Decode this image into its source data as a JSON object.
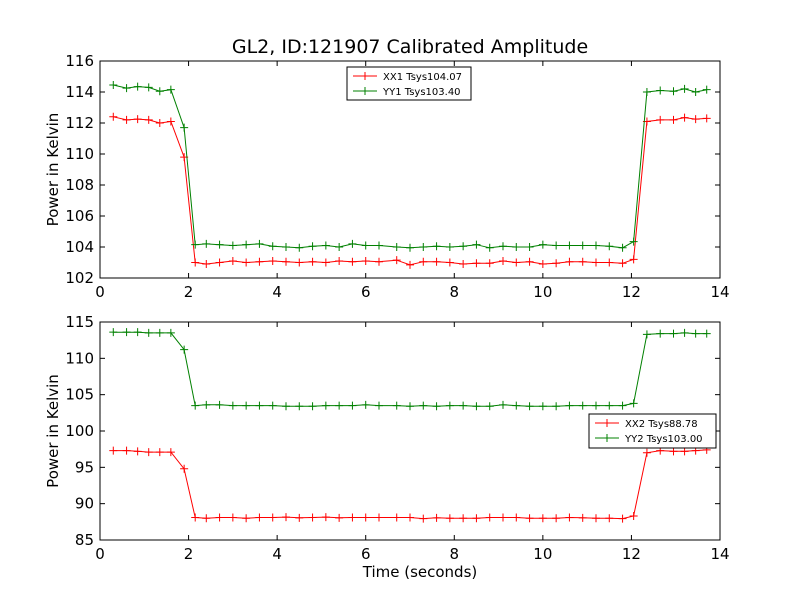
{
  "figure": {
    "title": "GL2, ID:121907 Calibrated Amplitude"
  },
  "chart_data": [
    {
      "type": "line",
      "title": "GL2, ID:121907 Calibrated Amplitude",
      "xlabel": "",
      "ylabel": "Power in Kelvin",
      "xlim": [
        0,
        14
      ],
      "ylim": [
        102,
        116
      ],
      "xticks": [
        "0",
        "2",
        "4",
        "6",
        "8",
        "10",
        "12",
        "14"
      ],
      "yticks": [
        "102",
        "104",
        "106",
        "108",
        "110",
        "112",
        "114",
        "116"
      ],
      "grid": false,
      "legend_position": "upper-center",
      "x": [
        0.3,
        0.6,
        0.85,
        1.1,
        1.35,
        1.6,
        1.9,
        2.15,
        2.4,
        2.7,
        3.0,
        3.3,
        3.6,
        3.9,
        4.2,
        4.5,
        4.8,
        5.1,
        5.4,
        5.7,
        6.0,
        6.3,
        6.7,
        7.0,
        7.3,
        7.6,
        7.9,
        8.2,
        8.5,
        8.8,
        9.1,
        9.4,
        9.7,
        10.0,
        10.3,
        10.6,
        10.9,
        11.2,
        11.5,
        11.8,
        12.05,
        12.35,
        12.65,
        12.95,
        13.2,
        13.45,
        13.7
      ],
      "series": [
        {
          "name": "XX1 Tsys104.07",
          "color": "#ff0000",
          "values": [
            112.4,
            112.2,
            112.25,
            112.2,
            112.0,
            112.1,
            109.8,
            103.0,
            102.9,
            103.0,
            103.1,
            103.0,
            103.05,
            103.1,
            103.05,
            103.0,
            103.05,
            103.0,
            103.1,
            103.05,
            103.1,
            103.05,
            103.15,
            102.85,
            103.05,
            103.05,
            103.0,
            102.9,
            102.95,
            102.95,
            103.1,
            103.0,
            103.05,
            102.9,
            102.95,
            103.05,
            103.05,
            103.0,
            103.0,
            102.95,
            103.2,
            112.1,
            112.2,
            112.2,
            112.35,
            112.25,
            112.3
          ]
        },
        {
          "name": "YY1 Tsys103.40",
          "color": "#008000",
          "values": [
            114.45,
            114.25,
            114.35,
            114.3,
            114.05,
            114.15,
            111.7,
            104.15,
            104.2,
            104.15,
            104.1,
            104.15,
            104.2,
            104.05,
            104.0,
            103.95,
            104.05,
            104.1,
            104.0,
            104.2,
            104.1,
            104.1,
            104.0,
            103.95,
            104.0,
            104.05,
            104.0,
            104.05,
            104.15,
            103.95,
            104.05,
            104.0,
            104.0,
            104.15,
            104.1,
            104.1,
            104.1,
            104.1,
            104.05,
            103.95,
            104.35,
            114.0,
            114.1,
            114.05,
            114.2,
            114.0,
            114.15
          ]
        }
      ]
    },
    {
      "type": "line",
      "title": "",
      "xlabel": "Time (seconds)",
      "ylabel": "Power in Kelvin",
      "xlim": [
        0,
        14
      ],
      "ylim": [
        85,
        115
      ],
      "xticks": [
        "0",
        "2",
        "4",
        "6",
        "8",
        "10",
        "12",
        "14"
      ],
      "yticks": [
        "85",
        "90",
        "95",
        "100",
        "105",
        "110",
        "115"
      ],
      "grid": false,
      "legend_position": "center-right",
      "x": [
        0.3,
        0.6,
        0.85,
        1.1,
        1.35,
        1.6,
        1.9,
        2.15,
        2.4,
        2.7,
        3.0,
        3.3,
        3.6,
        3.9,
        4.2,
        4.5,
        4.8,
        5.1,
        5.4,
        5.7,
        6.0,
        6.3,
        6.7,
        7.0,
        7.3,
        7.6,
        7.9,
        8.2,
        8.5,
        8.8,
        9.1,
        9.4,
        9.7,
        10.0,
        10.3,
        10.6,
        10.9,
        11.2,
        11.5,
        11.8,
        12.05,
        12.35,
        12.65,
        12.95,
        13.2,
        13.45,
        13.7
      ],
      "series": [
        {
          "name": "XX2 Tsys88.78",
          "color": "#ff0000",
          "values": [
            97.3,
            97.3,
            97.2,
            97.1,
            97.1,
            97.1,
            94.8,
            88.1,
            88.0,
            88.1,
            88.1,
            88.0,
            88.1,
            88.1,
            88.15,
            88.05,
            88.1,
            88.15,
            88.05,
            88.1,
            88.1,
            88.1,
            88.1,
            88.1,
            87.95,
            88.05,
            88.0,
            88.0,
            88.0,
            88.1,
            88.1,
            88.1,
            88.0,
            88.0,
            88.0,
            88.1,
            88.05,
            88.0,
            88.0,
            87.95,
            88.3,
            97.0,
            97.3,
            97.2,
            97.2,
            97.3,
            97.4
          ]
        },
        {
          "name": "YY2 Tsys103.00",
          "color": "#008000",
          "values": [
            113.6,
            113.6,
            113.6,
            113.5,
            113.5,
            113.5,
            111.2,
            103.5,
            103.6,
            103.6,
            103.5,
            103.5,
            103.5,
            103.5,
            103.4,
            103.4,
            103.4,
            103.5,
            103.5,
            103.5,
            103.6,
            103.5,
            103.5,
            103.4,
            103.5,
            103.4,
            103.5,
            103.5,
            103.4,
            103.4,
            103.6,
            103.5,
            103.4,
            103.4,
            103.4,
            103.5,
            103.5,
            103.5,
            103.5,
            103.5,
            103.8,
            113.3,
            113.4,
            113.4,
            113.5,
            113.4,
            113.4
          ]
        }
      ]
    }
  ]
}
